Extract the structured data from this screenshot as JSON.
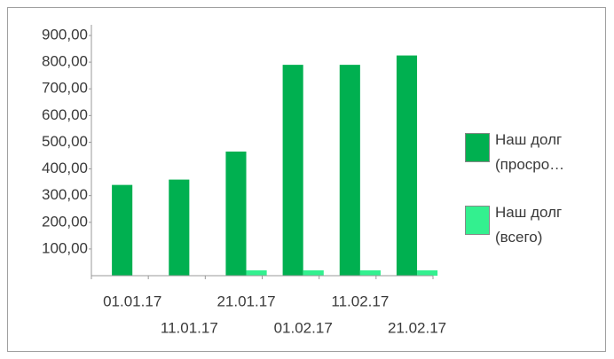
{
  "chart_data": {
    "type": "bar",
    "categories": [
      "01.01.17",
      "11.01.17",
      "21.01.17",
      "01.02.17",
      "11.02.17",
      "21.02.17"
    ],
    "series": [
      {
        "name": "Наш долг (просро…",
        "color": "#00b050",
        "values": [
          340,
          360,
          465,
          790,
          790,
          825
        ]
      },
      {
        "name": "Наш долг (всего)",
        "color": "#33f08f",
        "values": [
          0,
          0,
          20,
          20,
          20,
          20
        ]
      }
    ],
    "ylim": [
      0,
      900
    ],
    "yticks": [
      {
        "value": 100,
        "label": "100,00"
      },
      {
        "value": 200,
        "label": "200,00"
      },
      {
        "value": 300,
        "label": "300,00"
      },
      {
        "value": 400,
        "label": "400,00"
      },
      {
        "value": 500,
        "label": "500,00"
      },
      {
        "value": 600,
        "label": "600,00"
      },
      {
        "value": 700,
        "label": "700,00"
      },
      {
        "value": 800,
        "label": "800,00"
      },
      {
        "value": 900,
        "label": "900,00"
      }
    ]
  }
}
